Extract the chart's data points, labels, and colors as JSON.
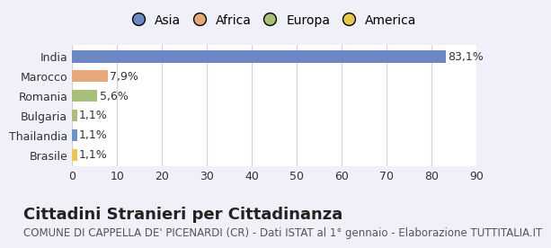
{
  "categories": [
    "India",
    "Marocco",
    "Romania",
    "Bulgaria",
    "Thailandia",
    "Brasile"
  ],
  "values": [
    83.1,
    7.9,
    5.6,
    1.1,
    1.1,
    1.1
  ],
  "labels": [
    "83,1%",
    "7,9%",
    "5,6%",
    "1,1%",
    "1,1%",
    "1,1%"
  ],
  "bar_colors": [
    "#6b88c4",
    "#e8a97a",
    "#a8bf7a",
    "#a8bf7a",
    "#7090c8",
    "#e8c84a"
  ],
  "legend_labels": [
    "Asia",
    "Africa",
    "Europa",
    "America"
  ],
  "legend_colors": [
    "#6b88c4",
    "#e8a97a",
    "#a8bf7a",
    "#e8c84a"
  ],
  "title": "Cittadini Stranieri per Cittadinanza",
  "subtitle": "COMUNE DI CAPPELLA DE' PICENARDI (CR) - Dati ISTAT al 1° gennaio - Elaborazione TUTTITALIA.IT",
  "xlim": [
    0,
    90
  ],
  "xticks": [
    0,
    10,
    20,
    30,
    40,
    50,
    60,
    70,
    80,
    90
  ],
  "background_color": "#f0f0f8",
  "plot_bg_color": "#ffffff",
  "grid_color": "#d0d0e0",
  "title_fontsize": 13,
  "subtitle_fontsize": 8.5,
  "label_fontsize": 9,
  "tick_fontsize": 9,
  "legend_fontsize": 10
}
